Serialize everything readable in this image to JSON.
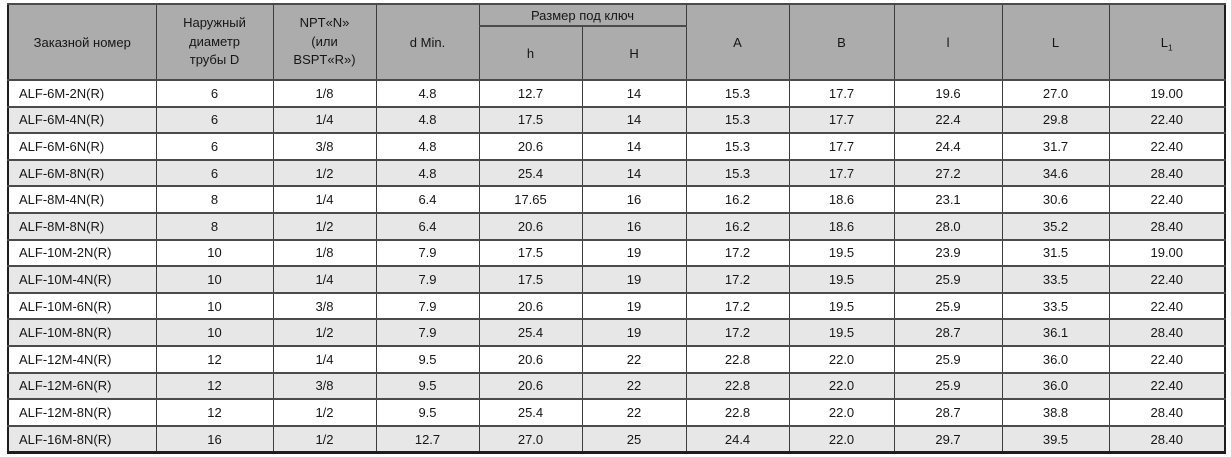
{
  "table": {
    "headers": {
      "order_number": "Заказной номер",
      "outer_diameter_line1": "Наружный",
      "outer_diameter_line2": "диаметр",
      "outer_diameter_line3": "трубы D",
      "npt_line1": "NPT«N»",
      "npt_line2": "(или",
      "npt_line3": "BSPT«R»)",
      "d_min": "d Min.",
      "wrench_size": "Размер под ключ",
      "h_lower": "h",
      "h_upper": "H",
      "col_a": "A",
      "col_b": "B",
      "col_l_lower": "l",
      "col_l_upper": "L",
      "col_l1_base": "L",
      "col_l1_sub": "1"
    },
    "rows": [
      [
        "ALF-6M-2N(R)",
        "6",
        "1/8",
        "4.8",
        "12.7",
        "14",
        "15.3",
        "17.7",
        "19.6",
        "27.0",
        "19.00"
      ],
      [
        "ALF-6M-4N(R)",
        "6",
        "1/4",
        "4.8",
        "17.5",
        "14",
        "15.3",
        "17.7",
        "22.4",
        "29.8",
        "22.40"
      ],
      [
        "ALF-6M-6N(R)",
        "6",
        "3/8",
        "4.8",
        "20.6",
        "14",
        "15.3",
        "17.7",
        "24.4",
        "31.7",
        "22.40"
      ],
      [
        "ALF-6M-8N(R)",
        "6",
        "1/2",
        "4.8",
        "25.4",
        "14",
        "15.3",
        "17.7",
        "27.2",
        "34.6",
        "28.40"
      ],
      [
        "ALF-8M-4N(R)",
        "8",
        "1/4",
        "6.4",
        "17.65",
        "16",
        "16.2",
        "18.6",
        "23.1",
        "30.6",
        "22.40"
      ],
      [
        "ALF-8M-8N(R)",
        "8",
        "1/2",
        "6.4",
        "20.6",
        "16",
        "16.2",
        "18.6",
        "28.0",
        "35.2",
        "28.40"
      ],
      [
        "ALF-10M-2N(R)",
        "10",
        "1/8",
        "7.9",
        "17.5",
        "19",
        "17.2",
        "19.5",
        "23.9",
        "31.5",
        "19.00"
      ],
      [
        "ALF-10M-4N(R)",
        "10",
        "1/4",
        "7.9",
        "17.5",
        "19",
        "17.2",
        "19.5",
        "25.9",
        "33.5",
        "22.40"
      ],
      [
        "ALF-10M-6N(R)",
        "10",
        "3/8",
        "7.9",
        "20.6",
        "19",
        "17.2",
        "19.5",
        "25.9",
        "33.5",
        "22.40"
      ],
      [
        "ALF-10M-8N(R)",
        "10",
        "1/2",
        "7.9",
        "25.4",
        "19",
        "17.2",
        "19.5",
        "28.7",
        "36.1",
        "28.40"
      ],
      [
        "ALF-12M-4N(R)",
        "12",
        "1/4",
        "9.5",
        "20.6",
        "22",
        "22.8",
        "22.0",
        "25.9",
        "36.0",
        "22.40"
      ],
      [
        "ALF-12M-6N(R)",
        "12",
        "3/8",
        "9.5",
        "20.6",
        "22",
        "22.8",
        "22.0",
        "25.9",
        "36.0",
        "22.40"
      ],
      [
        "ALF-12M-8N(R)",
        "12",
        "1/2",
        "9.5",
        "25.4",
        "22",
        "22.8",
        "22.0",
        "28.7",
        "38.8",
        "28.40"
      ],
      [
        "ALF-16M-8N(R)",
        "16",
        "1/2",
        "12.7",
        "27.0",
        "25",
        "24.4",
        "22.0",
        "29.7",
        "39.5",
        "28.40"
      ]
    ],
    "colors": {
      "header_bg": "#acacac",
      "row_stripe": "#e7e7e7",
      "inner_border": "#3c3c3c",
      "outer_border": "#1e1e1e",
      "text": "#161616"
    }
  }
}
